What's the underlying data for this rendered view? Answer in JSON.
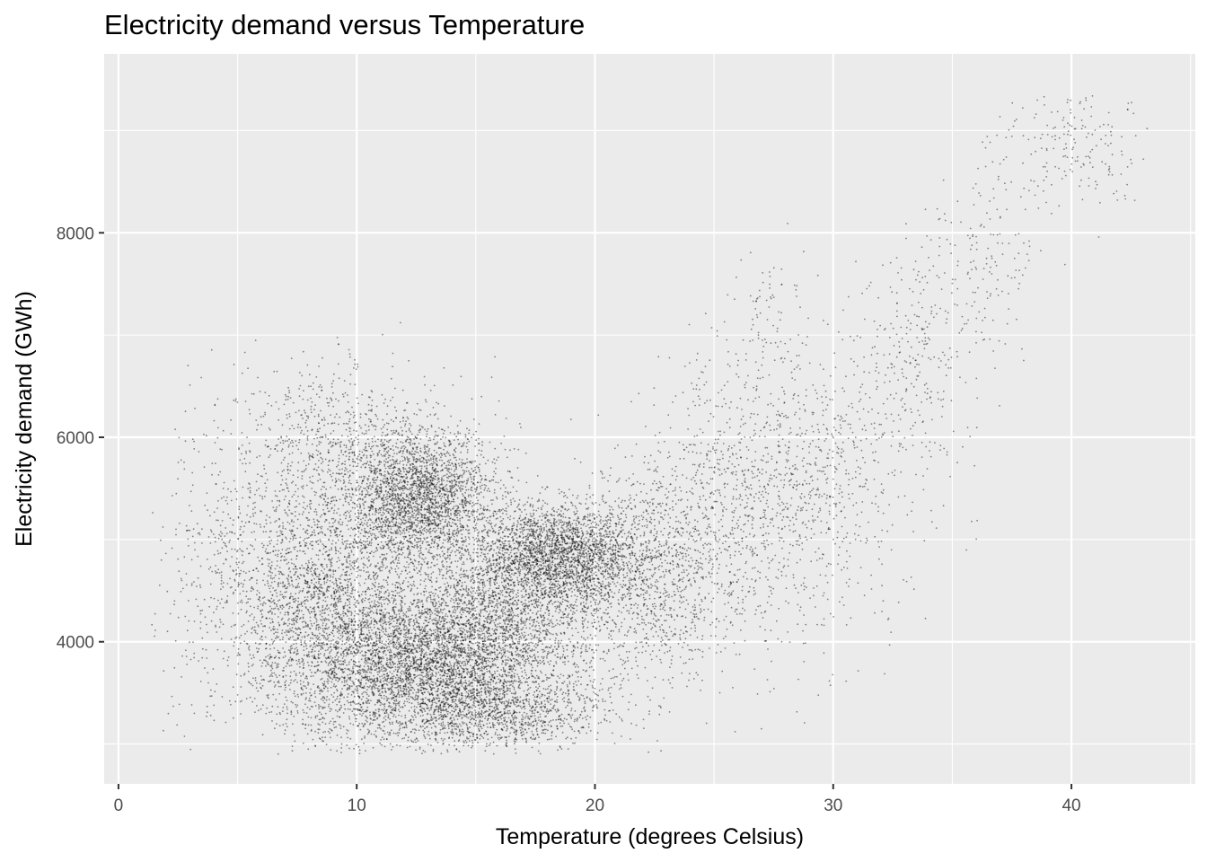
{
  "chart_data": {
    "type": "scatter",
    "title": "Electricity demand versus Temperature",
    "xlabel": "Temperature (degrees Celsius)",
    "ylabel": "Electricity demand (GWh)",
    "xlim": [
      -0.6,
      45.2
    ],
    "ylim": [
      2610,
      9750
    ],
    "x_ticks": [
      0,
      10,
      20,
      30,
      40
    ],
    "y_ticks": [
      4000,
      6000,
      8000
    ],
    "grid": true,
    "legend": "none",
    "point_color": "#000000",
    "panel_background": "#ebebeb",
    "n_points_approx": 17520,
    "point_clusters": [
      {
        "n": 4200,
        "x_mean": 13.0,
        "x_sd": 2.6,
        "y_mean": 3800,
        "y_sd": 380
      },
      {
        "n": 2600,
        "x_mean": 8.5,
        "x_sd": 2.0,
        "y_mean": 4400,
        "y_sd": 650
      },
      {
        "n": 2600,
        "x_mean": 12.6,
        "x_sd": 1.6,
        "y_mean": 5400,
        "y_sd": 320
      },
      {
        "n": 1800,
        "x_mean": 16.5,
        "x_sd": 2.2,
        "y_mean": 4300,
        "y_sd": 450
      },
      {
        "n": 2300,
        "x_mean": 18.5,
        "x_sd": 1.7,
        "y_mean": 4850,
        "y_sd": 240
      },
      {
        "n": 900,
        "x_mean": 16.0,
        "x_sd": 2.3,
        "y_mean": 3300,
        "y_sd": 180
      },
      {
        "n": 600,
        "x_mean": 9.5,
        "x_sd": 2.2,
        "y_mean": 6000,
        "y_sd": 350
      },
      {
        "n": 1200,
        "x_mean": 22.5,
        "x_sd": 1.8,
        "y_mean": 4700,
        "y_sd": 550
      },
      {
        "n": 800,
        "x_mean": 26.5,
        "x_sd": 1.8,
        "y_mean": 5400,
        "y_sd": 750
      },
      {
        "n": 300,
        "x_mean": 3.8,
        "x_sd": 1.4,
        "y_mean": 4800,
        "y_sd": 800
      },
      {
        "n": 450,
        "x_mean": 30.0,
        "x_sd": 1.6,
        "y_mean": 5600,
        "y_sd": 700
      },
      {
        "n": 250,
        "x_mean": 33.5,
        "x_sd": 1.2,
        "y_mean": 6800,
        "y_sd": 500
      },
      {
        "n": 150,
        "x_mean": 36.5,
        "x_sd": 1.2,
        "y_mean": 7800,
        "y_sd": 500
      },
      {
        "n": 200,
        "x_mean": 40.3,
        "x_sd": 1.6,
        "y_mean": 8900,
        "y_sd": 350
      },
      {
        "n": 60,
        "x_mean": 27.0,
        "x_sd": 0.9,
        "y_mean": 7200,
        "y_sd": 350
      },
      {
        "n": 40,
        "x_mean": 34.0,
        "x_sd": 1.5,
        "y_mean": 5500,
        "y_sd": 500
      }
    ]
  }
}
